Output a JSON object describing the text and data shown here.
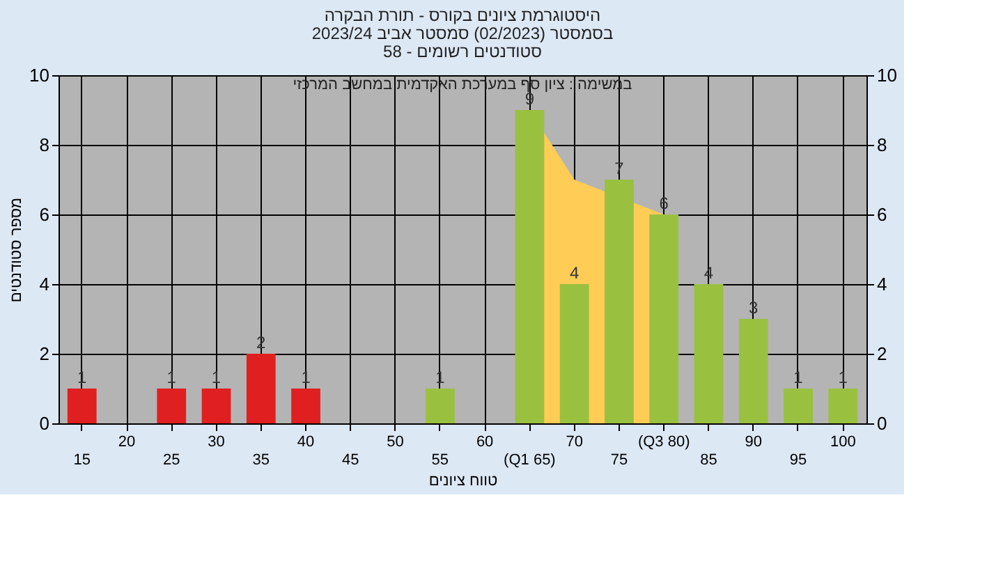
{
  "chart_data": {
    "type": "bar",
    "title": [
      "היסטוגרמת ציונים בקורס - תורת הבקרה",
      "בסמסטר  (02/2023)  סמסטר אביב 2023/24",
      "סטודנטים רשומים - 58"
    ],
    "xlabel": "טווח ציונים",
    "ylabel": "מספר סטודנטים",
    "categories": [
      "15",
      "20",
      "25",
      "30",
      "35",
      "40",
      "45",
      "50",
      "55",
      "60",
      "(Q1 65)",
      "70",
      "75",
      "(Q3 80)",
      "85",
      "90",
      "95",
      "100"
    ],
    "series": [
      {
        "type": "area",
        "color": "#ffcc55",
        "values": [
          null,
          null,
          null,
          null,
          null,
          null,
          null,
          null,
          null,
          null,
          9,
          7,
          null,
          6,
          null,
          null,
          null,
          null
        ]
      },
      {
        "values": [
          1,
          0,
          1,
          1,
          2,
          1,
          0,
          0,
          1,
          0,
          9,
          4,
          7,
          6,
          4,
          3,
          1,
          1
        ],
        "colors": [
          "#e02020",
          "#e02020",
          "#e02020",
          "#e02020",
          "#e02020",
          "#e02020",
          "#e02020",
          "#e02020",
          "#9ac040",
          "#9ac040",
          "#9ac040",
          "#9ac040",
          "#9ac040",
          "#9ac040",
          "#9ac040",
          "#9ac040",
          "#9ac040",
          "#9ac040"
        ],
        "value_labels": [
          "1",
          null,
          "1",
          "1",
          "2",
          "1",
          null,
          null,
          "1",
          null,
          "9",
          "4",
          "7",
          "6",
          "4",
          "3",
          "1",
          "1"
        ]
      }
    ],
    "ylim": [
      0,
      10
    ],
    "yticks": [
      0,
      2,
      4,
      6,
      8,
      10
    ],
    "y2lim": [
      0,
      10
    ],
    "y2ticks": [
      0,
      2,
      4,
      6,
      8,
      10
    ],
    "grid": true,
    "annotations": [
      "במשימה : ציון סף במערכת האקדמית במחשב המרכזי"
    ]
  }
}
